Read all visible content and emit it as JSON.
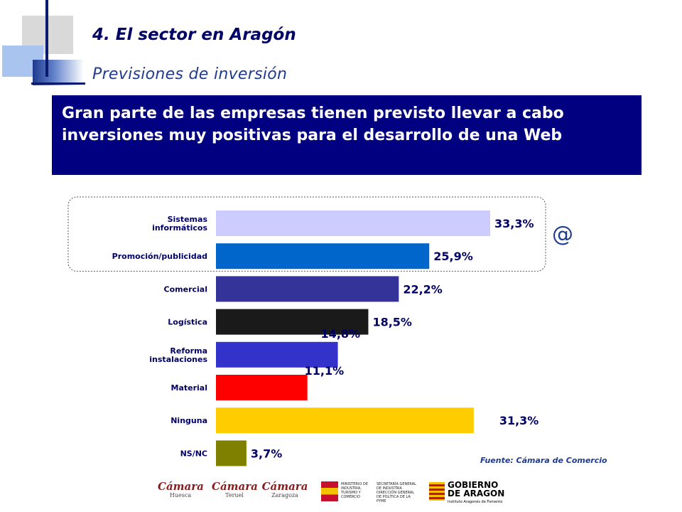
{
  "header": {
    "section_title": "4. El sector en Aragón",
    "subsection_title": "Previsiones de inversión"
  },
  "headline": "Gran parte de las empresas tienen previsto llevar a cabo inversiones muy positivas para el desarrollo de una Web",
  "icon": {
    "name": "at-icon",
    "glyph": "@"
  },
  "source_note": "Fuente: Cámara de Comercio",
  "chart_data": {
    "type": "bar",
    "orientation": "horizontal",
    "categories": [
      "Sistemas informáticos",
      "Promoción/publicidad",
      "Comercial",
      "Logística",
      "Reforma instalaciones",
      "Material",
      "Ninguna",
      "NS/NC"
    ],
    "category_lines": [
      [
        "Sistemas",
        "informáticos"
      ],
      [
        "Promoción/publicidad"
      ],
      [
        "Comercial"
      ],
      [
        "Logística"
      ],
      [
        "Reforma",
        "instalaciones"
      ],
      [
        "Material"
      ],
      [
        "Ninguna"
      ],
      [
        "NS/NC"
      ]
    ],
    "values": [
      33.3,
      25.9,
      22.2,
      18.5,
      14.8,
      11.1,
      31.3,
      3.7
    ],
    "value_labels": [
      "33,3%",
      "25,9%",
      "22,2%",
      "18,5%",
      "14,8%",
      "11,1%",
      "31,3%",
      "3,7%"
    ],
    "colors": [
      "#ccccff",
      "#0066cc",
      "#333399",
      "#1a1a1a",
      "#3333cc",
      "#ff0000",
      "#ffcc00",
      "#808000"
    ],
    "unit": "%",
    "highlight_group": [
      "Sistemas informáticos",
      "Promoción/publicidad"
    ],
    "title": "",
    "xlabel": "",
    "ylabel": ""
  },
  "logos": [
    {
      "name": "Cámara",
      "sub": "Huesca"
    },
    {
      "name": "Cámara",
      "sub": "Teruel"
    },
    {
      "name": "Cámara",
      "sub": "Zaragoza"
    }
  ],
  "ministry": {
    "col1": "MINISTERIO DE INDUSTRIA, TURISMO Y COMERCIO",
    "col2": "SECRETARÍA GENERAL DE INDUSTRIA DIRECCIÓN GENERAL DE POLÍTICA DE LA PYME"
  },
  "gobierno": {
    "name": "GOBIERNO DE ARAGON",
    "sub": "Instituto Aragonés de Fomento"
  }
}
